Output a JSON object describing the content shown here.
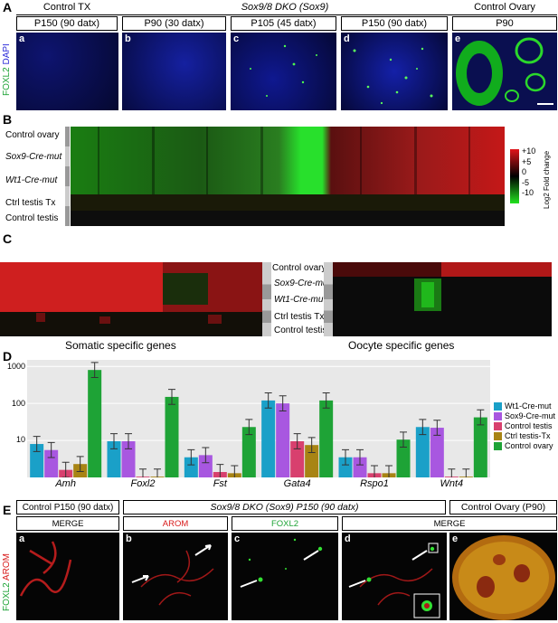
{
  "panelA": {
    "letter": "A",
    "groups": {
      "control_tx": "Control TX",
      "dko": "Sox9/8 DKO (Sox9)",
      "control_ovary": "Control Ovary"
    },
    "timepoints": [
      "P150 (90 datx)",
      "P90 (30 datx)",
      "P105 (45 datx)",
      "P150 (90 datx)",
      "P90"
    ],
    "subpanels": [
      "a",
      "b",
      "c",
      "d",
      "e"
    ],
    "side_label_green": "FOXL2",
    "side_label_blue": "DAPI"
  },
  "panelB": {
    "letter": "B",
    "rows": [
      "Control ovary",
      "Sox9-Cre-mut",
      "Wt1-Cre-mut",
      "Ctrl testis Tx",
      "Control testis"
    ],
    "colorbar_ticks": [
      "+10",
      "+5",
      "0",
      "-5",
      "-10"
    ],
    "colorbar_label": "Log2 Fold change",
    "colors": {
      "up": "#e0141a",
      "mid": "#000000",
      "down": "#22e21f"
    }
  },
  "panelC": {
    "letter": "C",
    "rows": [
      "Control ovary",
      "Sox9-Cre-mut",
      "Wt1-Cre-mut",
      "Ctrl testis Tx",
      "Control testis"
    ],
    "left_title": "Somatic specific genes",
    "right_title": "Oocyte specific genes"
  },
  "panelD": {
    "letter": "D",
    "chart_data": {
      "type": "bar",
      "yscale": "log",
      "yticks": [
        "1000",
        "100",
        "10"
      ],
      "categories": [
        "Amh",
        "Foxl2",
        "Fst",
        "Gata4",
        "Rspo1",
        "Wnt4"
      ],
      "series": [
        {
          "name": "Wt1-Cre-mut",
          "color": "#1aa0c8",
          "values": [
            8,
            9.5,
            3.5,
            120,
            3.5,
            23
          ]
        },
        {
          "name": "Sox9-Cre-mut",
          "color": "#a857e0",
          "values": [
            5.5,
            9.5,
            4,
            100,
            3.5,
            22
          ]
        },
        {
          "name": "Control testis",
          "color": "#d8406e",
          "values": [
            1.6,
            1.05,
            1.4,
            9.5,
            1.3,
            1.05
          ]
        },
        {
          "name": "Ctrl testis-Tx",
          "color": "#a88414",
          "values": [
            2.3,
            1.05,
            1.3,
            7.5,
            1.3,
            1.05
          ]
        },
        {
          "name": "Control ovary",
          "color": "#1ea336",
          "values": [
            800,
            150,
            23,
            120,
            10.5,
            42
          ]
        }
      ],
      "ylim": [
        1,
        1500
      ]
    }
  },
  "panelE": {
    "letter": "E",
    "groups": {
      "control": "Control  P150 (90 datx)",
      "dko": "Sox9/8 DKO (Sox9)   P150 (90 datx)",
      "ovary": "Control Ovary (P90)"
    },
    "channels": [
      "MERGE",
      "AROM",
      "FOXL2",
      "MERGE"
    ],
    "subpanels": [
      "a",
      "b",
      "c",
      "d",
      "e"
    ],
    "side_label_green": "FOXL2",
    "side_label_red": "AROM"
  }
}
